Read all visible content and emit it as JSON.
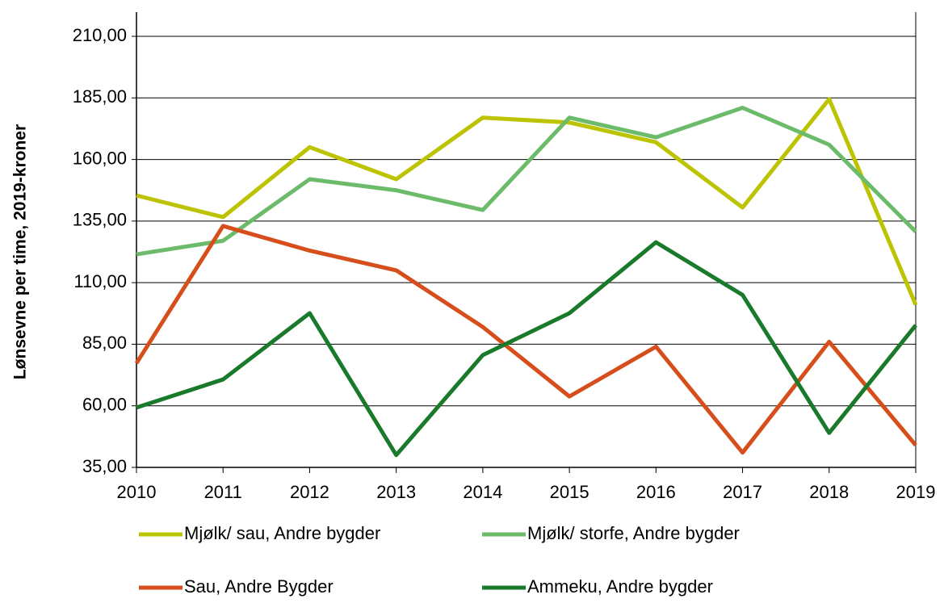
{
  "chart_data": {
    "type": "line",
    "y_label": "Lønsevne per time, 2019-kroner",
    "x": [
      2010,
      2011,
      2012,
      2013,
      2014,
      2015,
      2016,
      2017,
      2018,
      2019
    ],
    "xlim": [
      2010,
      2019
    ],
    "xticks": [
      2010,
      2011,
      2012,
      2013,
      2014,
      2015,
      2016,
      2017,
      2018,
      2019
    ],
    "ylim": [
      35,
      210
    ],
    "yticks": [
      {
        "value": 35,
        "label": "35,00"
      },
      {
        "value": 60,
        "label": "60,00"
      },
      {
        "value": 85,
        "label": "85,00"
      },
      {
        "value": 110,
        "label": "110,00"
      },
      {
        "value": 135,
        "label": "135,00"
      },
      {
        "value": 160,
        "label": "160,00"
      },
      {
        "value": 185,
        "label": "185,00"
      },
      {
        "value": 210,
        "label": "210,00"
      }
    ],
    "grid": true,
    "legend": "bottom",
    "series": [
      {
        "name": "Mjølk/ sau, Andre bygder",
        "color": "#bcc300",
        "values": [
          145.4,
          136.6,
          165,
          152,
          177,
          175,
          167,
          140.5,
          184.5,
          101
        ]
      },
      {
        "name": "Mjølk/ storfe, Andre bygder",
        "color": "#6cbb6a",
        "values": [
          121.5,
          127,
          152,
          147.5,
          139.5,
          177,
          169,
          181,
          166,
          130.7
        ]
      },
      {
        "name": "Sau, Andre Bygder",
        "color": "#d64e1b",
        "values": [
          77.3,
          133,
          123,
          115,
          92,
          63.8,
          84,
          41,
          86,
          44
        ]
      },
      {
        "name": "Ammeku, Andre bygder",
        "color": "#1a7a2b",
        "values": [
          59.3,
          70.7,
          97.6,
          40,
          80.6,
          97.6,
          126.4,
          105,
          49,
          92.7
        ]
      }
    ]
  }
}
